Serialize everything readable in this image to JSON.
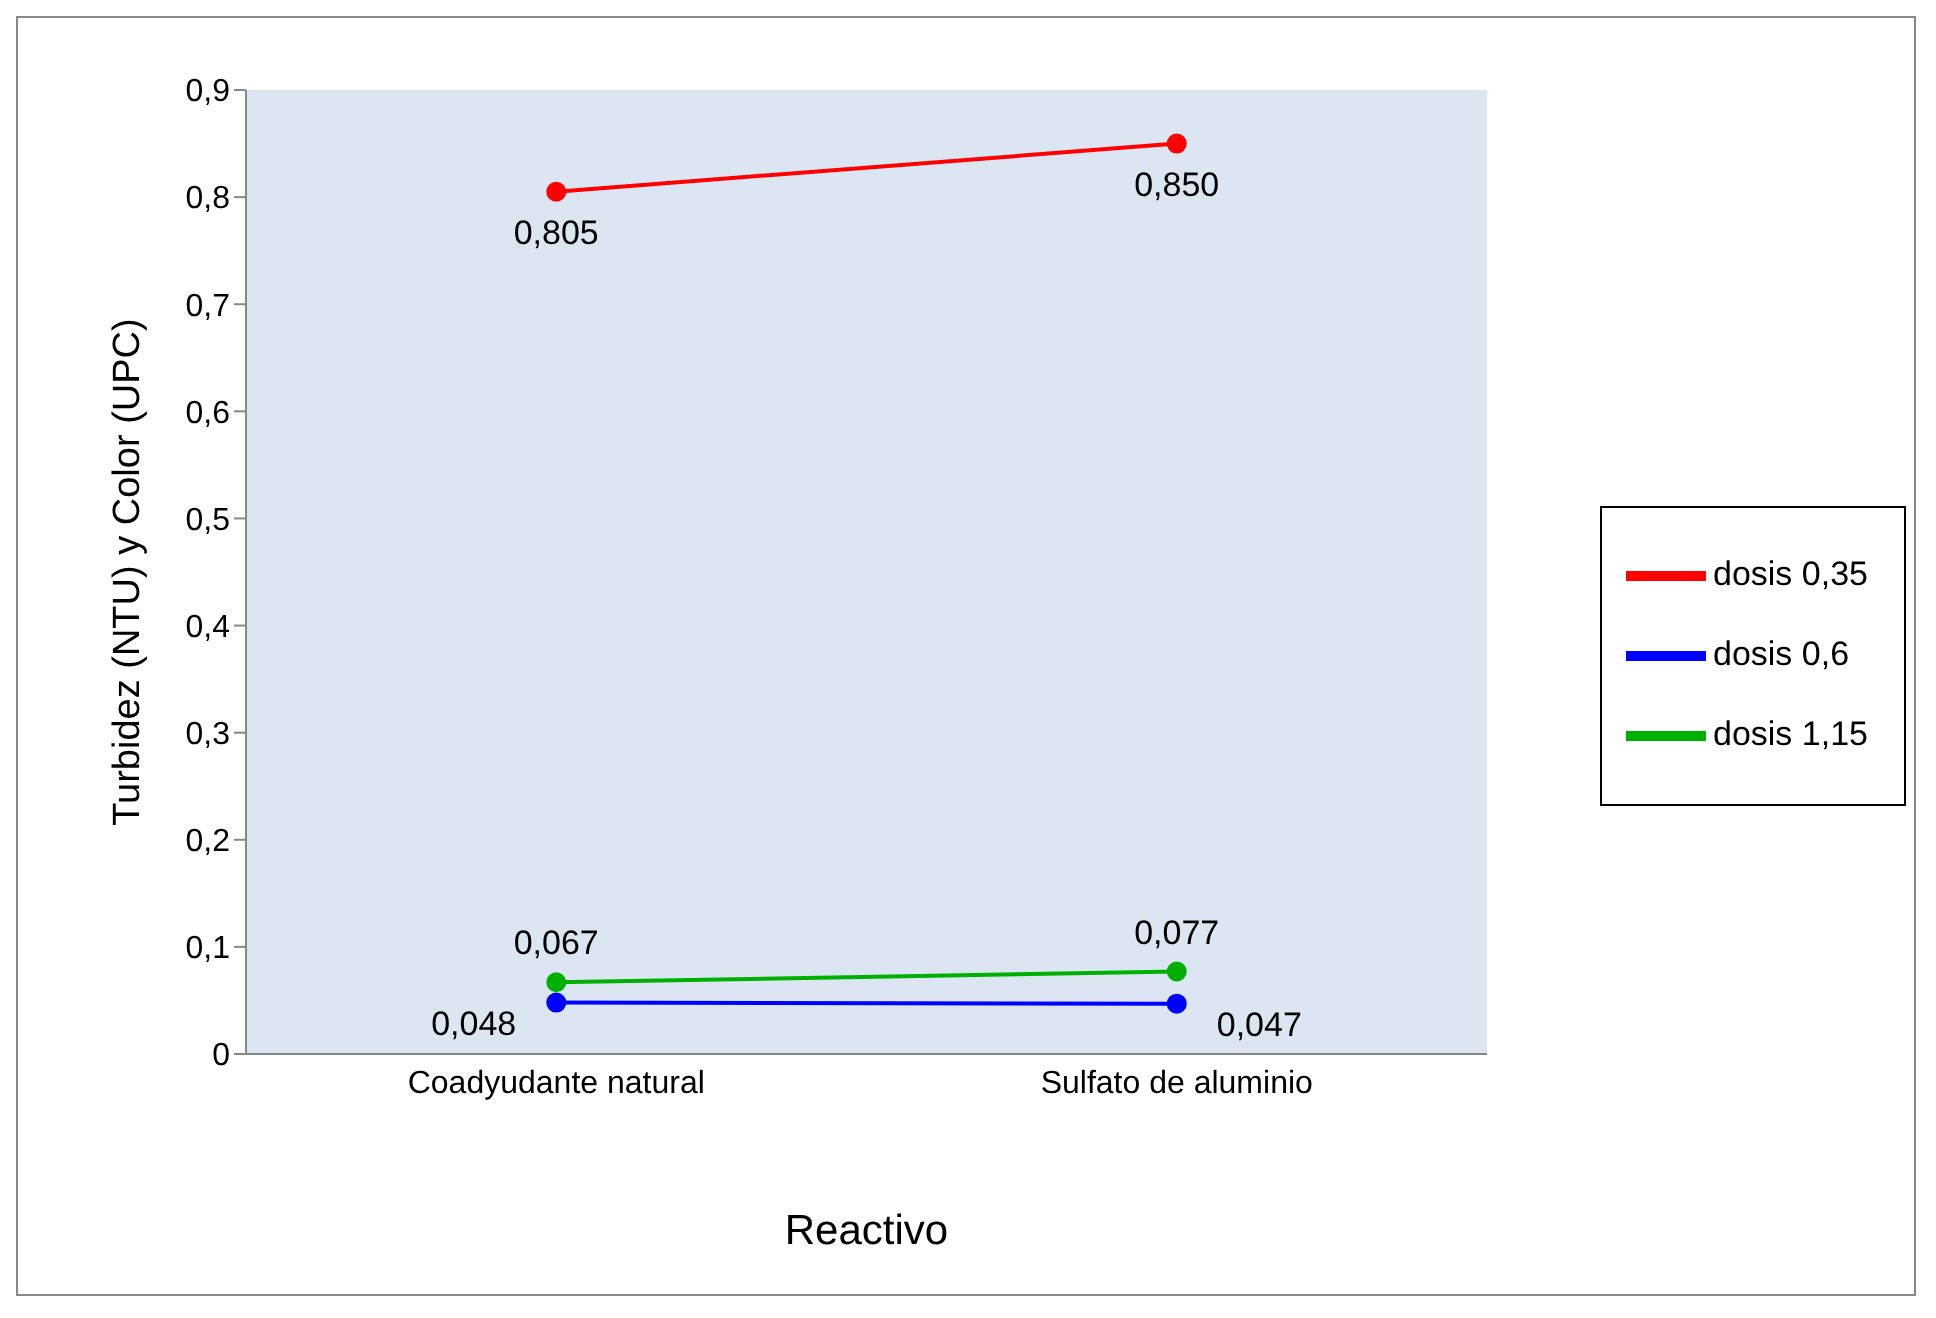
{
  "chart_data": {
    "type": "line",
    "xlabel": "Reactivo",
    "ylabel": "Turbidez (NTU) y Color (UPC)",
    "categories": [
      "Coadyudante natural",
      "Sulfato de aluminio"
    ],
    "series": [
      {
        "name": "dosis 0,35",
        "color": "#ff0000",
        "values": [
          0.805,
          0.85
        ],
        "value_labels": [
          "0,805",
          "0,850"
        ]
      },
      {
        "name": "dosis 0,6",
        "color": "#0000ff",
        "values": [
          0.048,
          0.047
        ],
        "value_labels": [
          "0,048",
          "0,047"
        ]
      },
      {
        "name": "dosis 1,15",
        "color": "#00b000",
        "values": [
          0.067,
          0.077
        ],
        "value_labels": [
          "0,067",
          "0,077"
        ]
      }
    ],
    "ylim": [
      0,
      0.9
    ],
    "yticks": [
      0,
      {
        "value": 0.1,
        "label": "0,1"
      },
      {
        "value": 0.2,
        "label": "0,2"
      },
      {
        "value": 0.3,
        "label": "0,3"
      },
      {
        "value": 0.4,
        "label": "0,4"
      },
      {
        "value": 0.5,
        "label": "0,5"
      },
      {
        "value": 0.6,
        "label": "0,6"
      },
      {
        "value": 0.7,
        "label": "0,7"
      },
      {
        "value": 0.8,
        "label": "0,8"
      },
      {
        "value": 0.9,
        "label": "0,9"
      }
    ],
    "grid": false,
    "legend": "right",
    "marker": "circle",
    "line_style": "solid"
  }
}
